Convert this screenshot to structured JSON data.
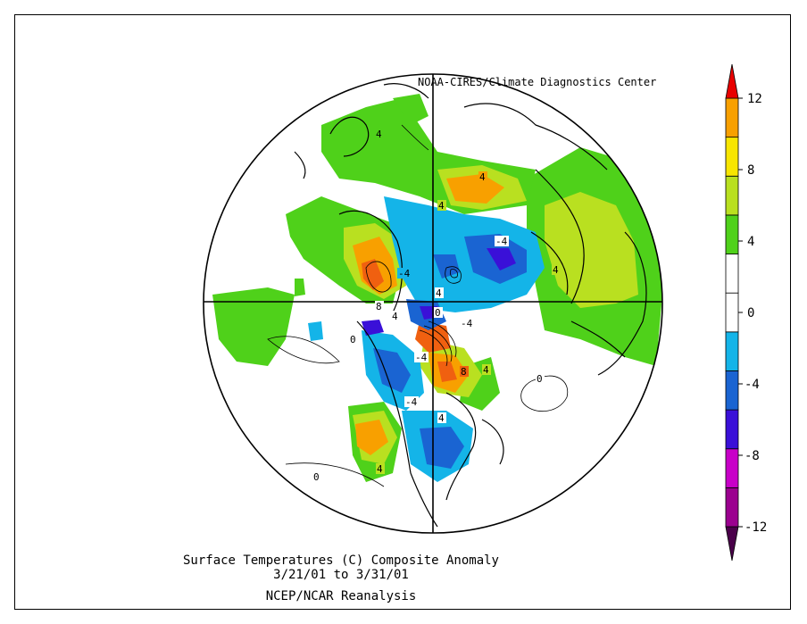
{
  "credit": "NOAA-CIRES/Climate Diagnostics Center",
  "caption": {
    "line1": "Surface Temperatures (C)   Composite Anomaly",
    "line2": "3/21/01  to 3/31/01",
    "line3": "NCEP/NCAR Reanalysis"
  },
  "colorbar": {
    "labels": [
      "12",
      "8",
      "4",
      "0",
      "-4",
      "-8",
      "-12"
    ],
    "colors": [
      "#9b008f",
      "#c800c8",
      "#3a10d8",
      "#1a64d2",
      "#14b4e8",
      "#ffffff",
      "#ffffff",
      "#4fd11a",
      "#b9e020",
      "#f8e600",
      "#f8a000",
      "#f06010",
      "#e80000"
    ]
  },
  "contour_labels": [
    "4",
    "4",
    "4",
    "-4",
    "4",
    "4",
    "4",
    "0",
    "0",
    "8",
    "-4",
    "-4",
    "-4",
    "4",
    "-4",
    "0",
    "0",
    "8",
    "4",
    "4"
  ]
}
